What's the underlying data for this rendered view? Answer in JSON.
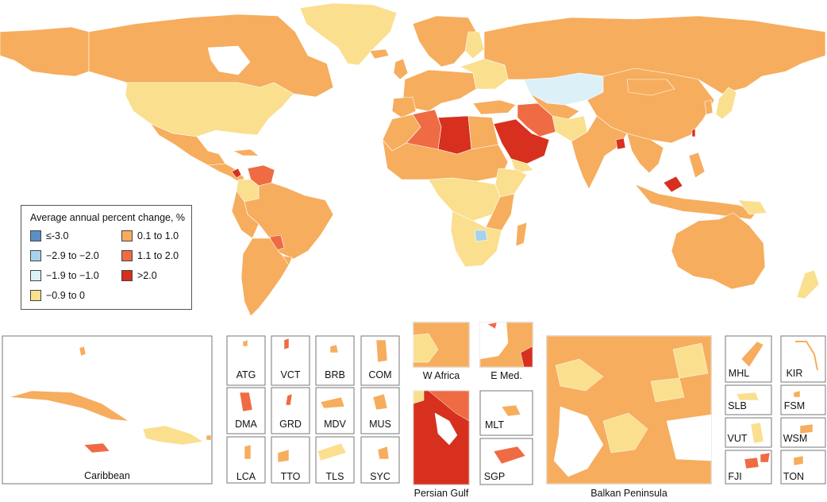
{
  "legend": {
    "title": "Average annual percent change, %",
    "items": [
      {
        "label": "≤-3.0",
        "color": "#5b8fc6"
      },
      {
        "label": "−2.9 to −2.0",
        "color": "#a6d3ec"
      },
      {
        "label": "−1.9 to −1.0",
        "color": "#dcf0f8"
      },
      {
        "label": "−0.9 to 0",
        "color": "#fadf8f"
      },
      {
        "label": "0.1 to 1.0",
        "color": "#f6ad5e"
      },
      {
        "label": "1.1 to 2.0",
        "color": "#ef6b43"
      },
      {
        "label": ">2.0",
        "color": "#d7301f"
      }
    ]
  },
  "insets": {
    "caribbean": "Caribbean",
    "atg": "ATG",
    "vct": "VCT",
    "brb": "BRB",
    "com": "COM",
    "dma": "DMA",
    "grd": "GRD",
    "mdv": "MDV",
    "mus": "MUS",
    "lca": "LCA",
    "tto": "TTO",
    "tls": "TLS",
    "syc": "SYC",
    "w_africa": "W Africa",
    "e_med": "E Med.",
    "persian_gulf": "Persian Gulf",
    "mlt": "MLT",
    "sgp": "SGP",
    "balkan": "Balkan Peninsula",
    "mhl": "MHL",
    "kir": "KIR",
    "slb": "SLB",
    "fsm": "FSM",
    "vut": "VUT",
    "wsm": "WSM",
    "fji": "FJI",
    "ton": "TON"
  }
}
